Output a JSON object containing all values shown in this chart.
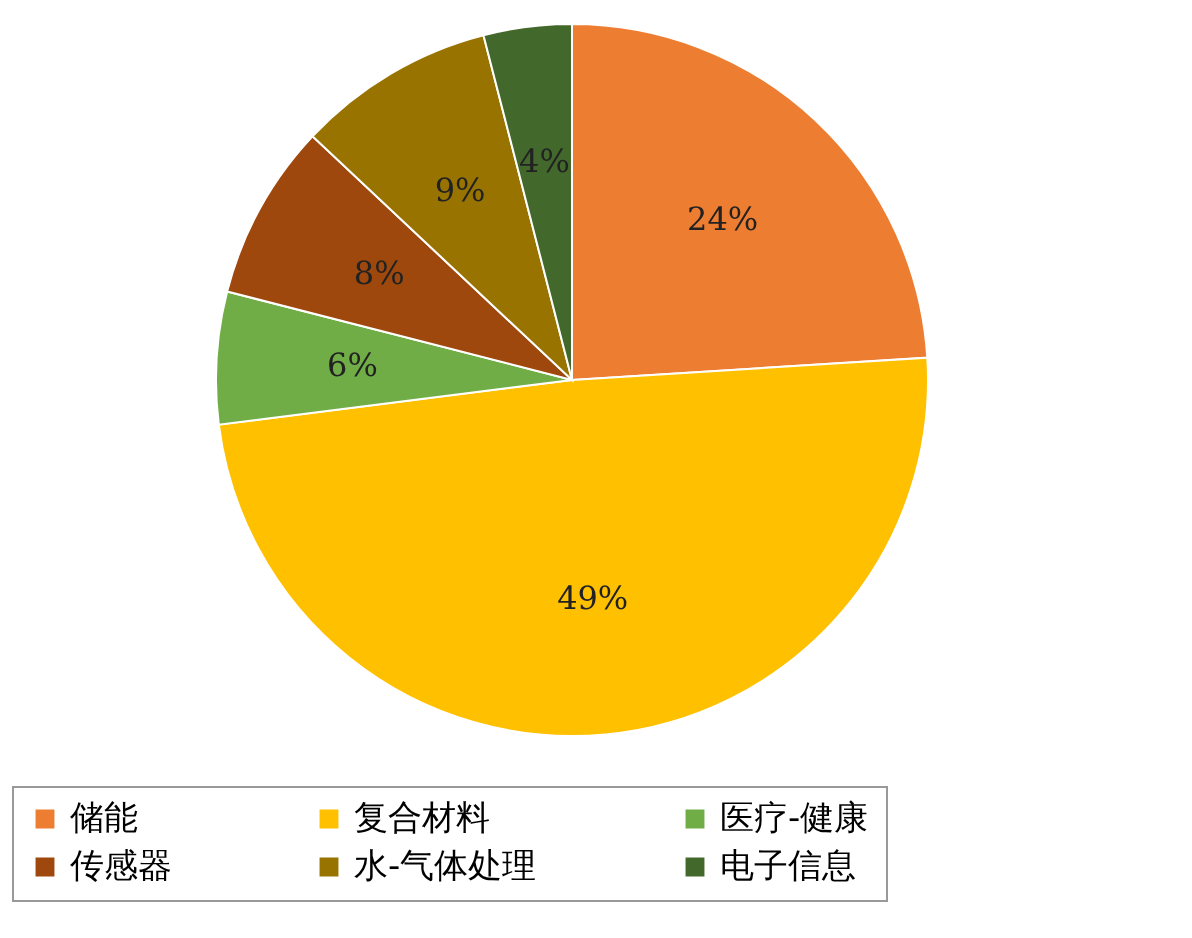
{
  "chart_data": {
    "type": "pie",
    "categories": [
      "储能",
      "复合材料",
      "医疗-健康",
      "传感器",
      "水-气体处理",
      "电子信息"
    ],
    "values": [
      24,
      49,
      6,
      8,
      9,
      4
    ],
    "value_labels": [
      "24%",
      "49%",
      "6%",
      "8%",
      "9%",
      "4%"
    ],
    "colors": [
      "#ed7d31",
      "#ffc000",
      "#70ad47",
      "#9e480e",
      "#997300",
      "#43682b"
    ],
    "legend": "bottom"
  }
}
